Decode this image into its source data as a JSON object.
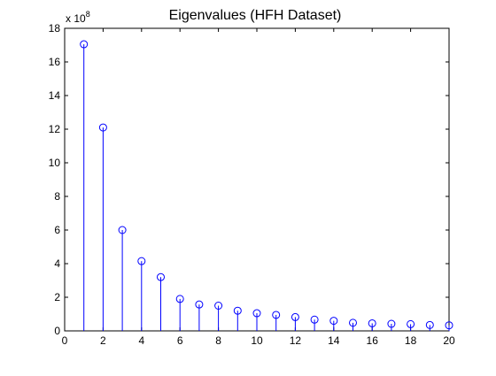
{
  "chart_data": {
    "type": "stem",
    "title": "Eigenvalues (HFH Dataset)",
    "xlabel": "",
    "ylabel": "",
    "y_multiplier": {
      "prefix": "x 10",
      "exponent": "8",
      "factor": 100000000
    },
    "xlim": [
      0,
      20
    ],
    "ylim": [
      0,
      18
    ],
    "x_ticks": [
      0,
      2,
      4,
      6,
      8,
      10,
      12,
      14,
      16,
      18,
      20
    ],
    "y_ticks": [
      0,
      2,
      4,
      6,
      8,
      10,
      12,
      14,
      16,
      18
    ],
    "grid": false,
    "marker": "circle",
    "series": [
      {
        "color": "#0000ff",
        "x": [
          1,
          2,
          3,
          4,
          5,
          6,
          7,
          8,
          9,
          10,
          11,
          12,
          13,
          14,
          15,
          16,
          17,
          18,
          19,
          20
        ],
        "values": [
          17.05,
          12.1,
          6.0,
          4.15,
          3.2,
          1.9,
          1.57,
          1.5,
          1.2,
          1.05,
          0.95,
          0.82,
          0.67,
          0.6,
          0.48,
          0.45,
          0.42,
          0.4,
          0.35,
          0.33
        ]
      }
    ]
  }
}
